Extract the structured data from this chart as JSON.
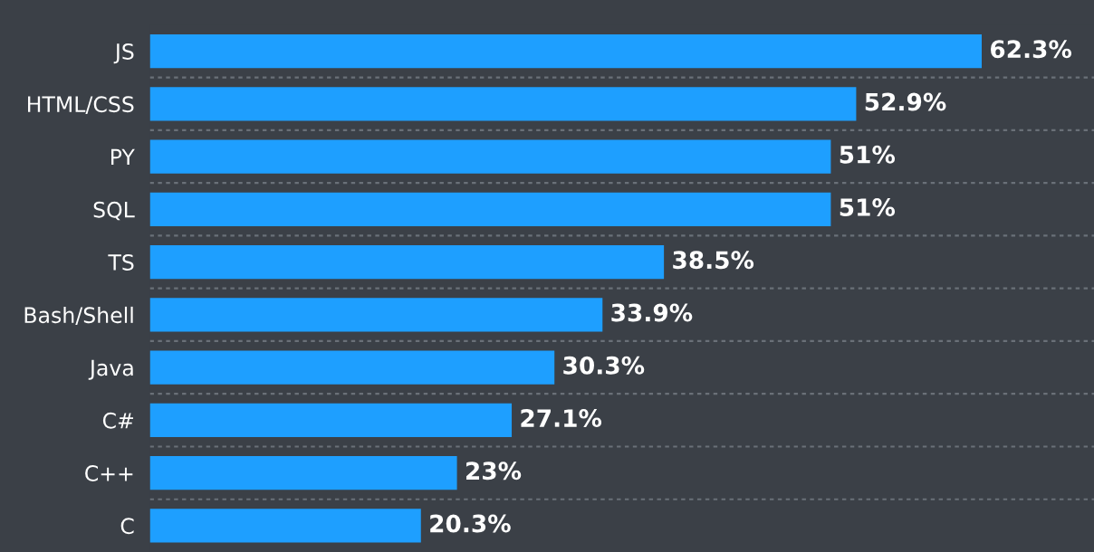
{
  "chart_data": {
    "type": "bar",
    "orientation": "horizontal",
    "categories": [
      "JS",
      "HTML/CSS",
      "PY",
      "SQL",
      "TS",
      "Bash/Shell",
      "Java",
      "C#",
      "C++",
      "C"
    ],
    "values": [
      62.3,
      52.9,
      51,
      51,
      38.5,
      33.9,
      30.3,
      27.1,
      23,
      20.3
    ],
    "value_labels": [
      "62.3%",
      "52.9%",
      "51%",
      "51%",
      "38.5%",
      "33.9%",
      "30.3%",
      "27.1%",
      "23%",
      "20.3%"
    ],
    "color": "#1e9fff",
    "grid": "y",
    "tick_labels": "y",
    "legend": false
  }
}
